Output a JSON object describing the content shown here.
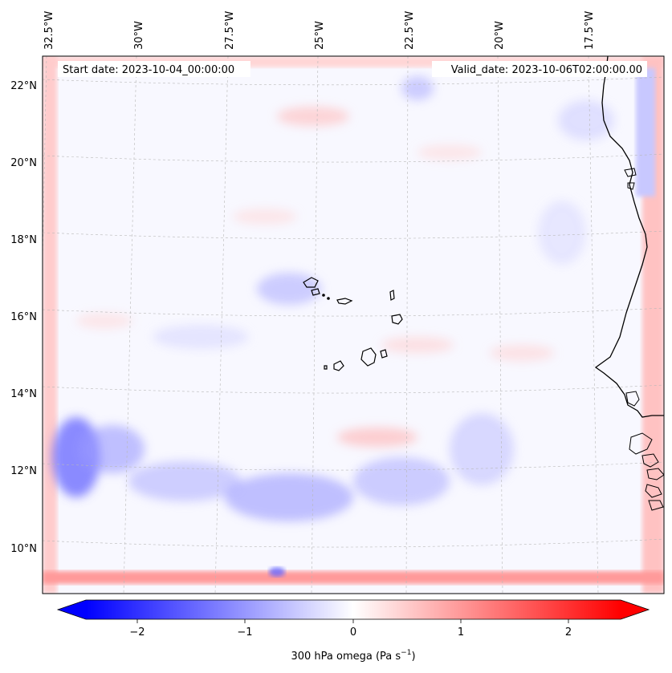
{
  "header": {
    "start_label": "Start date: 2023-10-04_00:00:00",
    "valid_label": "Valid_date: 2023-10-06T02:00:00.00"
  },
  "axes": {
    "lon_ticks": [
      "32.5°W",
      "30°W",
      "27.5°W",
      "25°W",
      "22.5°W",
      "20°W",
      "17.5°W"
    ],
    "lat_ticks": [
      "22°N",
      "20°N",
      "18°N",
      "16°N",
      "14°N",
      "12°N",
      "10°N"
    ]
  },
  "colorbar": {
    "label_main": "300 hPa omega (Pa s",
    "label_sup": "−1",
    "label_end": ")",
    "ticks": [
      "−2",
      "−1",
      "0",
      "1",
      "2"
    ],
    "range": [
      -2.6,
      2.6
    ],
    "cmap": "bwr",
    "extend": "both"
  },
  "colors": {
    "negative": "#0000ff",
    "neutral": "#ffffff",
    "positive": "#ff0000",
    "coastline": "#000000",
    "grid": "#b0b0b0"
  }
}
